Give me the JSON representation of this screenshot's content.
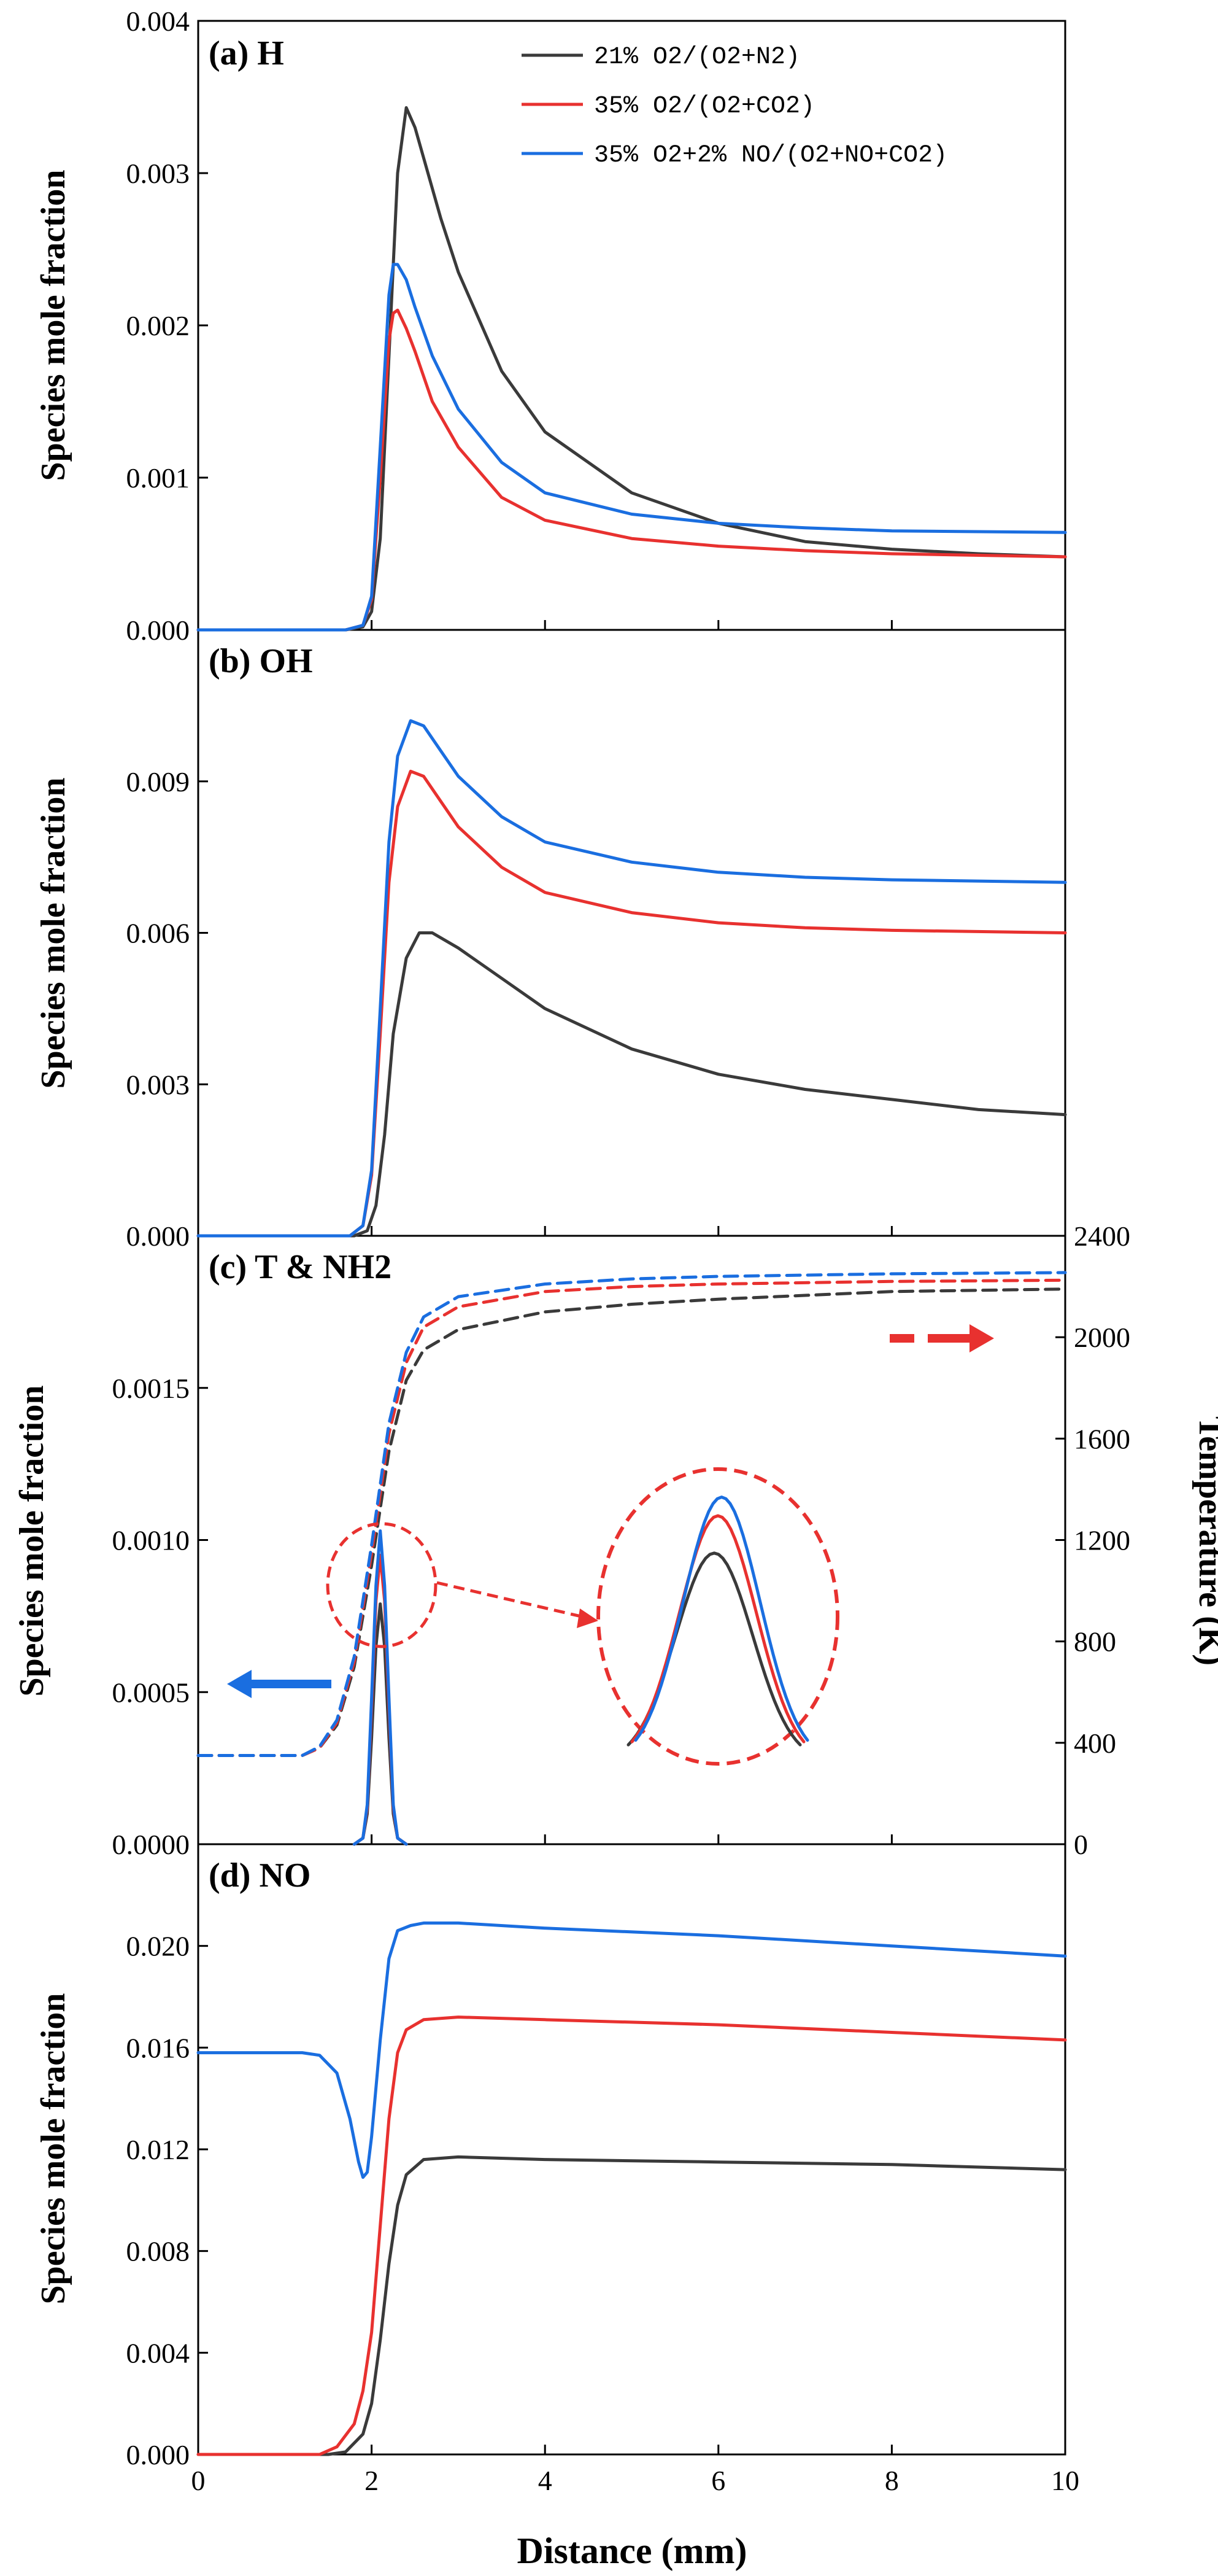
{
  "colors": {
    "black": "#3a3a3a",
    "red": "#e8312f",
    "blue": "#1a6ee0",
    "annot": "#e8312f"
  },
  "chart_data": [
    {
      "type": "line",
      "title": "(a) H",
      "xlabel": "Distance (mm)",
      "ylabel": "Species mole fraction",
      "xlim": [
        0,
        10
      ],
      "ylim": [
        0,
        0.004
      ],
      "yticks": [
        "0.000",
        "0.001",
        "0.002",
        "0.003",
        "0.004"
      ],
      "legend": {
        "placement": "top-right",
        "entries": [
          "21% O2/(O2+N2)",
          "35% O2/(O2+CO2)",
          "35% O2+2% NO/(O2+NO+CO2)"
        ]
      },
      "series": [
        {
          "name": "21% O2/(O2+N2)",
          "color": "#3a3a3a",
          "x": [
            0,
            1.7,
            1.9,
            2.0,
            2.1,
            2.2,
            2.3,
            2.4,
            2.5,
            2.6,
            2.8,
            3.0,
            3.5,
            4.0,
            5.0,
            6.0,
            7.0,
            8.0,
            9.0,
            10.0
          ],
          "y": [
            0,
            0,
            2e-05,
            0.00012,
            0.0006,
            0.0018,
            0.003,
            0.00343,
            0.0033,
            0.0031,
            0.0027,
            0.00235,
            0.0017,
            0.0013,
            0.0009,
            0.0007,
            0.00058,
            0.00053,
            0.0005,
            0.00048
          ]
        },
        {
          "name": "35% O2/(O2+CO2)",
          "color": "#e8312f",
          "x": [
            0,
            1.7,
            1.9,
            2.0,
            2.1,
            2.2,
            2.25,
            2.3,
            2.4,
            2.5,
            2.7,
            3.0,
            3.5,
            4.0,
            5.0,
            6.0,
            7.0,
            8.0,
            10.0
          ],
          "y": [
            0,
            0,
            3e-05,
            0.0002,
            0.001,
            0.0019,
            0.00208,
            0.0021,
            0.00198,
            0.00183,
            0.0015,
            0.0012,
            0.00087,
            0.00072,
            0.0006,
            0.00055,
            0.00052,
            0.0005,
            0.00048
          ]
        },
        {
          "name": "35% O2+2% NO/(O2+NO+CO2)",
          "color": "#1a6ee0",
          "x": [
            0,
            1.7,
            1.9,
            2.0,
            2.1,
            2.2,
            2.25,
            2.3,
            2.4,
            2.5,
            2.7,
            3.0,
            3.5,
            4.0,
            5.0,
            6.0,
            7.0,
            8.0,
            10.0
          ],
          "y": [
            0,
            0,
            3e-05,
            0.00022,
            0.0012,
            0.0022,
            0.0024,
            0.0024,
            0.0023,
            0.00212,
            0.0018,
            0.00145,
            0.0011,
            0.0009,
            0.00076,
            0.0007,
            0.00067,
            0.00065,
            0.00064
          ]
        }
      ]
    },
    {
      "type": "line",
      "title": "(b) OH",
      "xlabel": "Distance (mm)",
      "ylabel": "Species mole fraction",
      "xlim": [
        0,
        10
      ],
      "ylim": [
        0,
        0.012
      ],
      "yticks": [
        "0.000",
        "0.003",
        "0.006",
        "0.009"
      ],
      "series": [
        {
          "name": "21% O2/(O2+N2)",
          "color": "#3a3a3a",
          "x": [
            0,
            1.8,
            1.95,
            2.05,
            2.15,
            2.25,
            2.4,
            2.55,
            2.7,
            3.0,
            3.5,
            4.0,
            5.0,
            6.0,
            7.0,
            8.0,
            9.0,
            10.0
          ],
          "y": [
            0,
            0,
            0.0001,
            0.0006,
            0.002,
            0.004,
            0.0055,
            0.006,
            0.006,
            0.0057,
            0.0051,
            0.0045,
            0.0037,
            0.0032,
            0.0029,
            0.0027,
            0.0025,
            0.0024
          ]
        },
        {
          "name": "35% O2/(O2+CO2)",
          "color": "#e8312f",
          "x": [
            0,
            1.75,
            1.9,
            2.0,
            2.1,
            2.2,
            2.3,
            2.45,
            2.6,
            2.8,
            3.0,
            3.5,
            4.0,
            5.0,
            6.0,
            7.0,
            8.0,
            10.0
          ],
          "y": [
            0,
            0,
            0.0002,
            0.0012,
            0.004,
            0.007,
            0.0085,
            0.0092,
            0.0091,
            0.0086,
            0.0081,
            0.0073,
            0.0068,
            0.0064,
            0.0062,
            0.0061,
            0.00605,
            0.006
          ]
        },
        {
          "name": "35% O2+2% NO/(O2+NO+CO2)",
          "color": "#1a6ee0",
          "x": [
            0,
            1.75,
            1.9,
            2.0,
            2.1,
            2.2,
            2.3,
            2.45,
            2.6,
            2.8,
            3.0,
            3.5,
            4.0,
            5.0,
            6.0,
            7.0,
            8.0,
            10.0
          ],
          "y": [
            0,
            0,
            0.0002,
            0.0013,
            0.0045,
            0.0078,
            0.0095,
            0.0102,
            0.0101,
            0.0096,
            0.0091,
            0.0083,
            0.0078,
            0.0074,
            0.0072,
            0.0071,
            0.00705,
            0.007
          ]
        }
      ]
    },
    {
      "type": "line",
      "title": "(c) T & NH2",
      "xlabel": "Distance (mm)",
      "ylabel": "Species mole fraction",
      "y2label": "Temperature (K)",
      "xlim": [
        0,
        10
      ],
      "ylim": [
        0,
        0.002
      ],
      "y2lim": [
        0,
        2400
      ],
      "yticks": [
        "0.0000",
        "0.0005",
        "0.0010",
        "0.0015"
      ],
      "y2ticks": [
        "0",
        "400",
        "800",
        "1200",
        "1600",
        "2000",
        "2400"
      ],
      "series": [
        {
          "name": "21% O2/(O2+N2) NH2",
          "color": "#3a3a3a",
          "axis": "left",
          "x": [
            1.8,
            1.9,
            1.95,
            2.0,
            2.05,
            2.1,
            2.15,
            2.2,
            2.25,
            2.3,
            2.4
          ],
          "y": [
            0,
            2e-05,
            0.0001,
            0.00035,
            0.00065,
            0.00079,
            0.00065,
            0.00035,
            0.0001,
            2e-05,
            0
          ]
        },
        {
          "name": "35% O2/(O2+CO2) NH2",
          "color": "#e8312f",
          "axis": "left",
          "x": [
            1.8,
            1.9,
            1.95,
            2.0,
            2.05,
            2.1,
            2.15,
            2.2,
            2.25,
            2.3,
            2.4
          ],
          "y": [
            0,
            2e-05,
            0.00012,
            0.00045,
            0.0008,
            0.00095,
            0.0008,
            0.00045,
            0.00012,
            2e-05,
            0
          ]
        },
        {
          "name": "35% O2+2% NO/(O2+NO+CO2) NH2",
          "color": "#1a6ee0",
          "axis": "left",
          "x": [
            1.8,
            1.9,
            1.95,
            2.0,
            2.05,
            2.1,
            2.15,
            2.2,
            2.25,
            2.3,
            2.4
          ],
          "y": [
            0,
            2e-05,
            0.00013,
            0.00048,
            0.00085,
            0.00103,
            0.00085,
            0.00048,
            0.00013,
            2e-05,
            0
          ]
        },
        {
          "name": "21% O2/(O2+N2) T",
          "color": "#3a3a3a",
          "axis": "right",
          "dashed": true,
          "x": [
            0,
            1.2,
            1.4,
            1.6,
            1.8,
            2.0,
            2.2,
            2.4,
            2.6,
            3.0,
            4.0,
            5.0,
            6.0,
            7.0,
            8.0,
            10.0
          ],
          "y": [
            350,
            350,
            380,
            470,
            700,
            1100,
            1550,
            1830,
            1950,
            2030,
            2100,
            2130,
            2150,
            2165,
            2180,
            2190
          ]
        },
        {
          "name": "35% O2/(O2+CO2) T",
          "color": "#e8312f",
          "axis": "right",
          "dashed": true,
          "x": [
            0,
            1.2,
            1.4,
            1.6,
            1.8,
            2.0,
            2.2,
            2.4,
            2.6,
            3.0,
            4.0,
            5.0,
            6.0,
            7.0,
            8.0,
            10.0
          ],
          "y": [
            350,
            350,
            380,
            480,
            720,
            1150,
            1620,
            1900,
            2040,
            2120,
            2180,
            2200,
            2210,
            2215,
            2220,
            2225
          ]
        },
        {
          "name": "35% O2+2% NO/(O2+NO+CO2) T",
          "color": "#1a6ee0",
          "axis": "right",
          "dashed": true,
          "x": [
            0,
            1.2,
            1.4,
            1.6,
            1.8,
            2.0,
            2.2,
            2.4,
            2.6,
            3.0,
            4.0,
            5.0,
            6.0,
            7.0,
            8.0,
            10.0
          ],
          "y": [
            350,
            350,
            385,
            490,
            740,
            1180,
            1660,
            1940,
            2080,
            2160,
            2210,
            2230,
            2240,
            2245,
            2250,
            2255
          ]
        }
      ]
    },
    {
      "type": "line",
      "title": "(d) NO",
      "xlabel": "Distance (mm)",
      "ylabel": "Species mole fraction",
      "xlim": [
        0,
        10
      ],
      "ylim": [
        0,
        0.024
      ],
      "yticks": [
        "0.000",
        "0.004",
        "0.008",
        "0.012",
        "0.016",
        "0.020"
      ],
      "xticks": [
        "0",
        "2",
        "4",
        "6",
        "8",
        "10"
      ],
      "series": [
        {
          "name": "21% O2/(O2+N2)",
          "color": "#3a3a3a",
          "x": [
            0,
            1.5,
            1.7,
            1.9,
            2.0,
            2.1,
            2.2,
            2.3,
            2.4,
            2.6,
            3.0,
            4.0,
            6.0,
            8.0,
            10.0
          ],
          "y": [
            0,
            0,
            0.0001,
            0.0008,
            0.002,
            0.0045,
            0.0075,
            0.0098,
            0.011,
            0.0116,
            0.0117,
            0.0116,
            0.0115,
            0.0114,
            0.0112
          ]
        },
        {
          "name": "35% O2/(O2+CO2)",
          "color": "#e8312f",
          "x": [
            0,
            1.4,
            1.6,
            1.8,
            1.9,
            2.0,
            2.1,
            2.2,
            2.3,
            2.4,
            2.6,
            3.0,
            4.0,
            6.0,
            8.0,
            10.0
          ],
          "y": [
            0,
            0,
            0.0003,
            0.0012,
            0.0025,
            0.0048,
            0.009,
            0.0132,
            0.0158,
            0.0167,
            0.0171,
            0.0172,
            0.0171,
            0.0169,
            0.0166,
            0.0163
          ]
        },
        {
          "name": "35% O2+2% NO/(O2+NO+CO2)",
          "color": "#1a6ee0",
          "x": [
            0,
            1.2,
            1.4,
            1.6,
            1.75,
            1.85,
            1.9,
            1.95,
            2.0,
            2.1,
            2.2,
            2.3,
            2.45,
            2.6,
            3.0,
            4.0,
            6.0,
            8.0,
            10.0
          ],
          "y": [
            0.0158,
            0.0158,
            0.0157,
            0.015,
            0.0132,
            0.0115,
            0.0109,
            0.0111,
            0.0125,
            0.0163,
            0.0195,
            0.0206,
            0.0208,
            0.0209,
            0.0209,
            0.0207,
            0.0204,
            0.02,
            0.0196
          ]
        }
      ]
    }
  ],
  "inset": {
    "label_series": [
      "21% O2/(O2+N2)",
      "35% O2/(O2+CO2)",
      "35% O2+2% NO/(O2+NO+CO2)"
    ],
    "peaks": [
      0.79,
      0.95,
      1.03
    ]
  }
}
